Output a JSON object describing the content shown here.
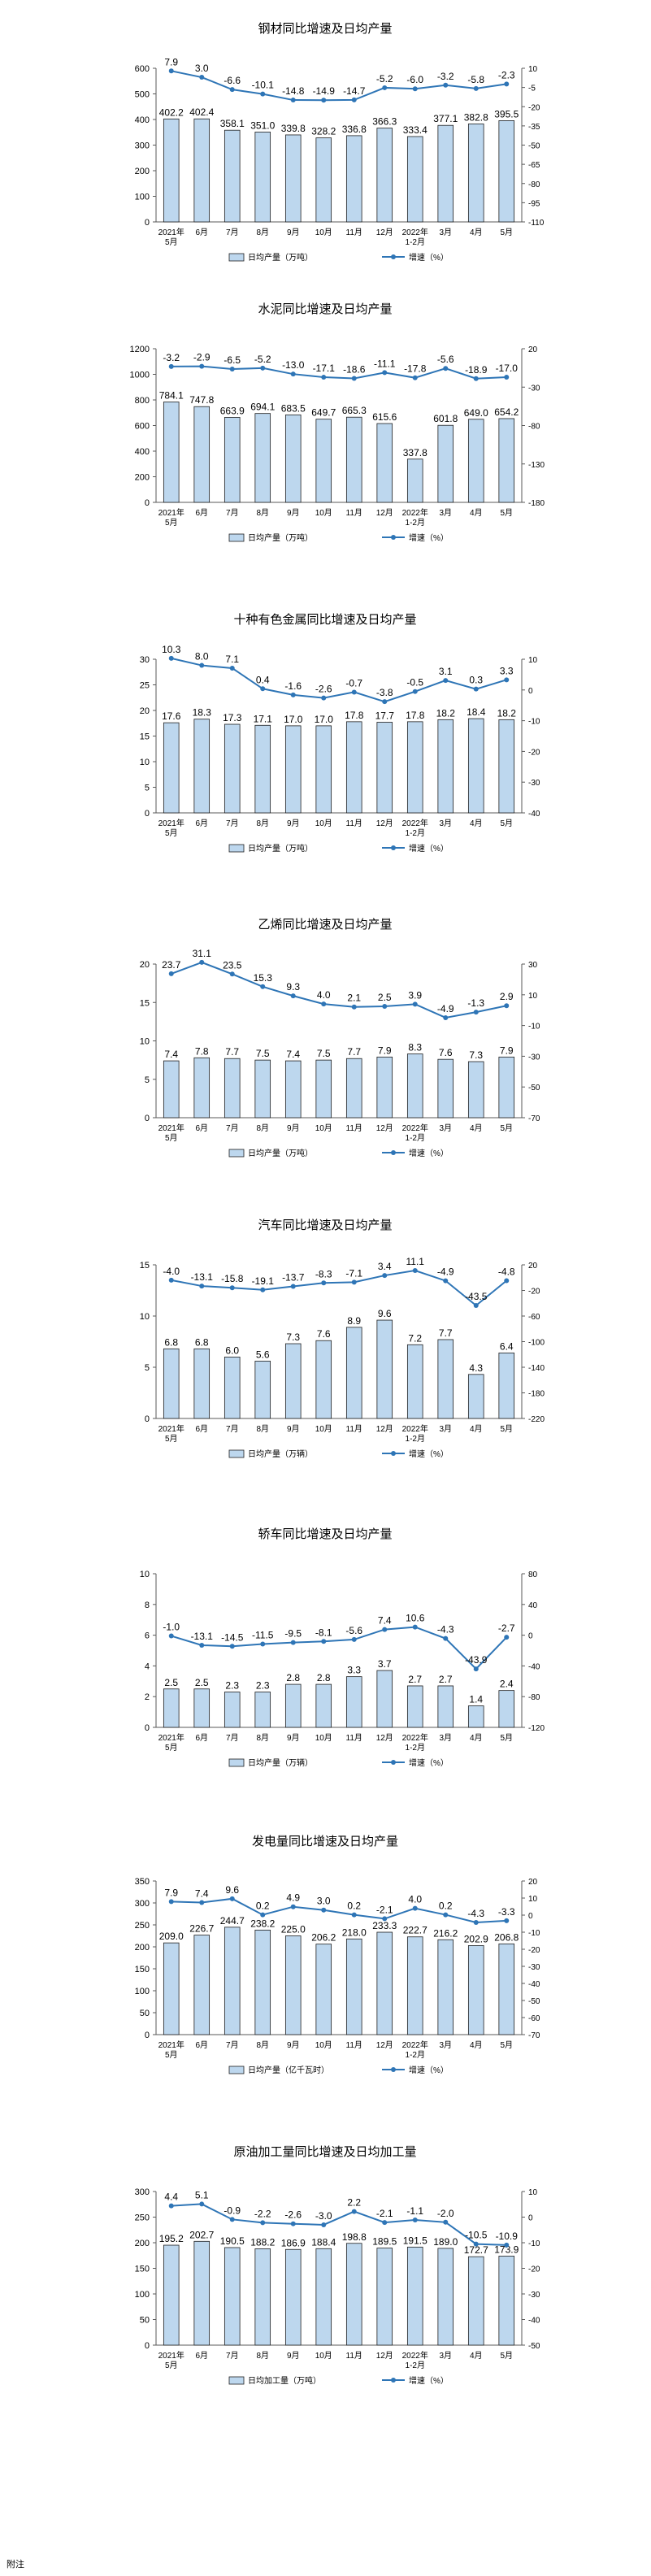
{
  "chart_data": [
    {
      "type": "bar",
      "title": "钢材同比增速及日均产量",
      "categories": [
        "2021年\n5月",
        "6月",
        "7月",
        "8月",
        "9月",
        "10月",
        "11月",
        "12月",
        "2022年\n1-2月",
        "3月",
        "4月",
        "5月"
      ],
      "y_left": [
        0,
        600
      ],
      "left_ticks": [
        0,
        100,
        200,
        300,
        400,
        500,
        600
      ],
      "y_right": [
        -110,
        10
      ],
      "right_ticks": [
        10,
        -5,
        -20,
        -35,
        -50,
        -65,
        -80,
        -95,
        -110
      ],
      "series": [
        {
          "name": "日均产量（万吨）",
          "type": "bar",
          "axis": "left",
          "values": [
            402.2,
            402.4,
            358.1,
            351.0,
            339.8,
            328.2,
            336.8,
            366.3,
            333.4,
            377.1,
            382.8,
            395.5
          ]
        },
        {
          "name": "增速（%）",
          "type": "line",
          "axis": "right",
          "values": [
            7.9,
            3.0,
            -6.6,
            -10.1,
            -14.8,
            -14.9,
            -14.7,
            -5.2,
            -6.0,
            -3.2,
            -5.8,
            -2.3
          ]
        }
      ],
      "legend": "bottom"
    },
    {
      "type": "bar",
      "title": "水泥同比增速及日均产量",
      "categories": [
        "2021年\n5月",
        "6月",
        "7月",
        "8月",
        "9月",
        "10月",
        "11月",
        "12月",
        "2022年\n1-2月",
        "3月",
        "4月",
        "5月"
      ],
      "y_left": [
        0,
        1200
      ],
      "left_ticks": [
        0,
        200,
        400,
        600,
        800,
        1000,
        1200
      ],
      "y_right": [
        -180,
        20
      ],
      "right_ticks": [
        20,
        -30,
        -80,
        -130,
        -180
      ],
      "series": [
        {
          "name": "日均产量（万吨）",
          "type": "bar",
          "axis": "left",
          "values": [
            784.1,
            747.8,
            663.9,
            694.1,
            683.5,
            649.7,
            665.3,
            615.6,
            337.8,
            601.8,
            649.0,
            654.2
          ]
        },
        {
          "name": "增速（%）",
          "type": "line",
          "axis": "right",
          "values": [
            -3.2,
            -2.9,
            -6.5,
            -5.2,
            -13.0,
            -17.1,
            -18.6,
            -11.1,
            -17.8,
            -5.6,
            -18.9,
            -17.0
          ]
        }
      ],
      "legend": "bottom"
    },
    {
      "type": "bar",
      "title": "十种有色金属同比增速及日均产量",
      "categories": [
        "2021年\n5月",
        "6月",
        "7月",
        "8月",
        "9月",
        "10月",
        "11月",
        "12月",
        "2022年\n1-2月",
        "3月",
        "4月",
        "5月"
      ],
      "y_left": [
        0,
        30
      ],
      "left_ticks": [
        0,
        5,
        10,
        15,
        20,
        25,
        30
      ],
      "y_right": [
        -40,
        10
      ],
      "right_ticks": [
        10,
        0,
        -10,
        -20,
        -30,
        -40
      ],
      "series": [
        {
          "name": "日均产量（万吨）",
          "type": "bar",
          "axis": "left",
          "values": [
            17.6,
            18.3,
            17.3,
            17.1,
            17.0,
            17.0,
            17.8,
            17.7,
            17.8,
            18.2,
            18.4,
            18.2
          ]
        },
        {
          "name": "增速（%）",
          "type": "line",
          "axis": "right",
          "values": [
            10.3,
            8.0,
            7.1,
            0.4,
            -1.6,
            -2.6,
            -0.7,
            -3.8,
            -0.5,
            3.1,
            0.3,
            3.3
          ]
        }
      ],
      "legend": "bottom"
    },
    {
      "type": "bar",
      "title": "乙烯同比增速及日均产量",
      "categories": [
        "2021年\n5月",
        "6月",
        "7月",
        "8月",
        "9月",
        "10月",
        "11月",
        "12月",
        "2022年\n1-2月",
        "3月",
        "4月",
        "5月"
      ],
      "y_left": [
        0,
        20
      ],
      "left_ticks": [
        0,
        5,
        10,
        15,
        20
      ],
      "y_right": [
        -70,
        30
      ],
      "right_ticks": [
        30,
        10,
        -10,
        -30,
        -50,
        -70
      ],
      "series": [
        {
          "name": "日均产量（万吨）",
          "type": "bar",
          "axis": "left",
          "values": [
            7.4,
            7.8,
            7.7,
            7.5,
            7.4,
            7.5,
            7.7,
            7.9,
            8.3,
            7.6,
            7.3,
            7.9
          ]
        },
        {
          "name": "增速（%）",
          "type": "line",
          "axis": "right",
          "values": [
            23.7,
            31.1,
            23.5,
            15.3,
            9.3,
            4.0,
            2.1,
            2.5,
            3.9,
            -4.9,
            -1.3,
            2.9
          ]
        }
      ],
      "legend": "bottom"
    },
    {
      "type": "bar",
      "title": "汽车同比增速及日均产量",
      "categories": [
        "2021年\n5月",
        "6月",
        "7月",
        "8月",
        "9月",
        "10月",
        "11月",
        "12月",
        "2022年\n1-2月",
        "3月",
        "4月",
        "5月"
      ],
      "y_left": [
        0,
        15
      ],
      "left_ticks": [
        0,
        5,
        10,
        15
      ],
      "y_right": [
        -220,
        20
      ],
      "right_ticks": [
        20,
        -20,
        -60,
        -100,
        -140,
        -180,
        -220
      ],
      "series": [
        {
          "name": "日均产量（万辆）",
          "type": "bar",
          "axis": "left",
          "values": [
            6.8,
            6.8,
            6.0,
            5.6,
            7.3,
            7.6,
            8.9,
            9.6,
            7.2,
            7.7,
            4.3,
            6.4
          ]
        },
        {
          "name": "增速（%）",
          "type": "line",
          "axis": "right",
          "values": [
            -4.0,
            -13.1,
            -15.8,
            -19.1,
            -13.7,
            -8.3,
            -7.1,
            3.4,
            11.1,
            -4.9,
            -43.5,
            -4.8
          ]
        }
      ],
      "legend": "bottom"
    },
    {
      "type": "bar",
      "title": "轿车同比增速及日均产量",
      "categories": [
        "2021年\n5月",
        "6月",
        "7月",
        "8月",
        "9月",
        "10月",
        "11月",
        "12月",
        "2022年\n1-2月",
        "3月",
        "4月",
        "5月"
      ],
      "y_left": [
        0,
        10
      ],
      "left_ticks": [
        0,
        2,
        4,
        6,
        8,
        10
      ],
      "y_right": [
        -120,
        80
      ],
      "right_ticks": [
        80,
        40,
        0,
        -40,
        -80,
        -120
      ],
      "series": [
        {
          "name": "日均产量（万辆）",
          "type": "bar",
          "axis": "left",
          "values": [
            2.5,
            2.5,
            2.3,
            2.3,
            2.8,
            2.8,
            3.3,
            3.7,
            2.7,
            2.7,
            1.4,
            2.4
          ]
        },
        {
          "name": "增速（%）",
          "type": "line",
          "axis": "right",
          "values": [
            -1.0,
            -13.1,
            -14.5,
            -11.5,
            -9.5,
            -8.1,
            -5.6,
            7.4,
            10.6,
            -4.3,
            -43.9,
            -2.7
          ]
        }
      ],
      "legend": "bottom"
    },
    {
      "type": "bar",
      "title": "发电量同比增速及日均产量",
      "categories": [
        "2021年\n5月",
        "6月",
        "7月",
        "8月",
        "9月",
        "10月",
        "11月",
        "12月",
        "2022年\n1-2月",
        "3月",
        "4月",
        "5月"
      ],
      "y_left": [
        0,
        350
      ],
      "left_ticks": [
        0,
        50,
        100,
        150,
        200,
        250,
        300,
        350
      ],
      "y_right": [
        -70,
        20
      ],
      "right_ticks": [
        20,
        10,
        0,
        -10,
        -20,
        -30,
        -40,
        -50,
        -60,
        -70
      ],
      "series": [
        {
          "name": "日均产量（亿千瓦时）",
          "type": "bar",
          "axis": "left",
          "values": [
            209.0,
            226.7,
            244.7,
            238.2,
            225.0,
            206.2,
            218.0,
            233.3,
            222.7,
            216.2,
            202.9,
            206.8
          ]
        },
        {
          "name": "增速（%）",
          "type": "line",
          "axis": "right",
          "values": [
            7.9,
            7.4,
            9.6,
            0.2,
            4.9,
            3.0,
            0.2,
            -2.1,
            4.0,
            0.2,
            -4.3,
            -3.3
          ]
        }
      ],
      "legend": "bottom"
    },
    {
      "type": "bar",
      "title": "原油加工量同比增速及日均加工量",
      "categories": [
        "2021年\n5月",
        "6月",
        "7月",
        "8月",
        "9月",
        "10月",
        "11月",
        "12月",
        "2022年\n1-2月",
        "3月",
        "4月",
        "5月"
      ],
      "y_left": [
        0,
        300
      ],
      "left_ticks": [
        0,
        50,
        100,
        150,
        200,
        250,
        300
      ],
      "y_right": [
        -50,
        10
      ],
      "right_ticks": [
        10,
        0,
        -10,
        -20,
        -30,
        -40,
        -50
      ],
      "series": [
        {
          "name": "日均加工量（万吨）",
          "type": "bar",
          "axis": "left",
          "values": [
            195.2,
            202.7,
            190.5,
            188.2,
            186.9,
            188.4,
            198.8,
            189.5,
            191.5,
            189.0,
            172.7,
            173.9
          ]
        },
        {
          "name": "增速（%）",
          "type": "line",
          "axis": "right",
          "values": [
            4.4,
            5.1,
            -0.9,
            -2.2,
            -2.6,
            -3.0,
            2.2,
            -2.1,
            -1.1,
            -2.0,
            -10.5,
            -10.9
          ]
        }
      ],
      "legend": "bottom"
    }
  ],
  "colors": {
    "bar_fill": "#bdd7ee",
    "bar_stroke": "#1f1f1f",
    "line": "#2e75b6",
    "axis": "#595959"
  },
  "footer": {
    "text": "附注"
  }
}
